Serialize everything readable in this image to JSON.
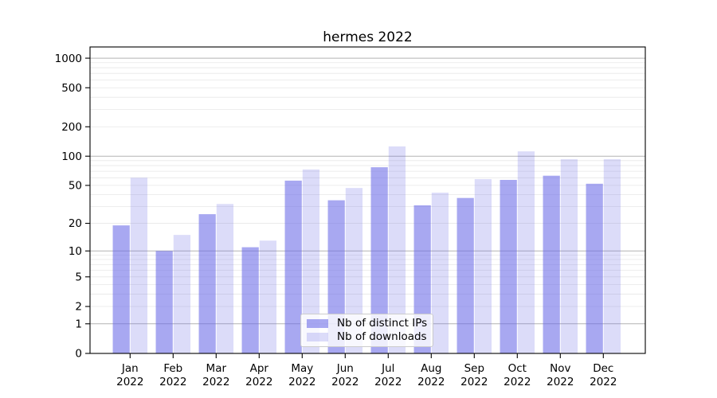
{
  "chart_data": {
    "type": "bar",
    "title": "hermes 2022",
    "categories": [
      {
        "line1": "Jan",
        "line2": "2022"
      },
      {
        "line1": "Feb",
        "line2": "2022"
      },
      {
        "line1": "Mar",
        "line2": "2022"
      },
      {
        "line1": "Apr",
        "line2": "2022"
      },
      {
        "line1": "May",
        "line2": "2022"
      },
      {
        "line1": "Jun",
        "line2": "2022"
      },
      {
        "line1": "Jul",
        "line2": "2022"
      },
      {
        "line1": "Aug",
        "line2": "2022"
      },
      {
        "line1": "Sep",
        "line2": "2022"
      },
      {
        "line1": "Oct",
        "line2": "2022"
      },
      {
        "line1": "Nov",
        "line2": "2022"
      },
      {
        "line1": "Dec",
        "line2": "2022"
      }
    ],
    "series": [
      {
        "name": "Nb of distinct IPs",
        "fill": "rgba(107,107,232,0.59)",
        "values": [
          19,
          10,
          25,
          11,
          56,
          35,
          77,
          31,
          37,
          57,
          63,
          52
        ]
      },
      {
        "name": "Nb of downloads",
        "fill": "rgba(107,107,232,0.24)",
        "values": [
          60,
          15,
          32,
          13,
          73,
          47,
          126,
          42,
          58,
          112,
          93,
          93
        ]
      }
    ],
    "yscale": "log10(1+v)",
    "ylim": [
      0,
      1300
    ],
    "yticks": [
      0,
      1,
      2,
      5,
      10,
      20,
      50,
      100,
      200,
      500,
      1000
    ],
    "grid": {
      "major_values": [
        1,
        10,
        100,
        1000
      ],
      "minor_values": [
        2,
        3,
        4,
        5,
        6,
        7,
        8,
        9,
        20,
        30,
        40,
        50,
        60,
        70,
        80,
        90,
        200,
        300,
        400,
        500,
        600,
        700,
        800,
        900
      ],
      "major_color": "#b3b3b3",
      "minor_color": "#e7e7e7"
    },
    "legend_position": "lower center",
    "colors": {
      "spine": "#000000",
      "tick_label": "#000000",
      "legend_border": "#cccccc",
      "legend_bg": "rgba(255,255,255,0.8)"
    }
  }
}
